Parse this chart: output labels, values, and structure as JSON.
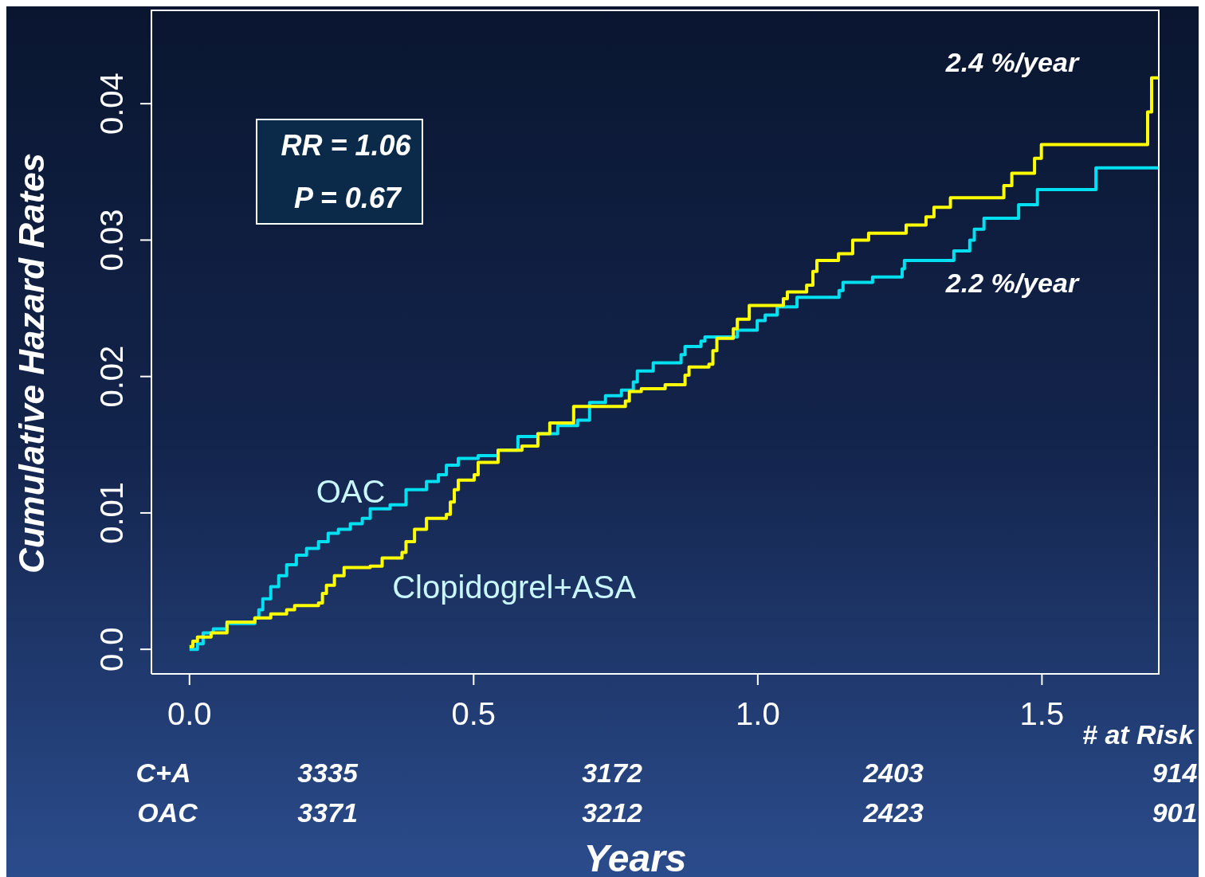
{
  "chart_data": {
    "type": "step",
    "xlabel": "Years",
    "ylabel": "Cumulative Hazard Rates",
    "xlim": [
      -0.067,
      1.707
    ],
    "ylim": [
      -0.0018,
      0.0469
    ],
    "xticks": [
      {
        "value": 0,
        "label": "0.0"
      },
      0.5,
      {
        "value": 1,
        "label": "1.0"
      },
      1.5
    ],
    "yticks": [
      {
        "value": 0,
        "label": "0.0"
      },
      0.01,
      0.02,
      0.03,
      0.04
    ],
    "series": [
      {
        "name": "OAC",
        "color": "#00e0f0",
        "x": [
          0,
          0.014,
          0.024,
          0.042,
          0.066,
          0.115,
          0.122,
          0.129,
          0.143,
          0.157,
          0.171,
          0.188,
          0.206,
          0.227,
          0.244,
          0.262,
          0.283,
          0.304,
          0.318,
          0.353,
          0.381,
          0.417,
          0.438,
          0.452,
          0.473,
          0.508,
          0.543,
          0.578,
          0.613,
          0.648,
          0.683,
          0.704,
          0.732,
          0.76,
          0.781,
          0.788,
          0.816,
          0.865,
          0.872,
          0.9,
          0.907,
          0.964,
          0.999,
          1.013,
          1.034,
          1.069,
          1.143,
          1.15,
          1.202,
          1.254,
          1.258,
          1.345,
          1.373,
          1.381,
          1.398,
          1.459,
          1.492,
          1.595,
          1.707
        ],
        "values": [
          0,
          0.0004,
          0.0012,
          0.0015,
          0.0019,
          0.0023,
          0.0029,
          0.0037,
          0.0046,
          0.0054,
          0.0062,
          0.0069,
          0.0074,
          0.0079,
          0.0085,
          0.0088,
          0.0092,
          0.0096,
          0.0103,
          0.0106,
          0.0117,
          0.0123,
          0.0128,
          0.0135,
          0.014,
          0.0142,
          0.0146,
          0.0156,
          0.0158,
          0.0164,
          0.0168,
          0.0181,
          0.0186,
          0.019,
          0.0196,
          0.0204,
          0.021,
          0.0216,
          0.0222,
          0.0226,
          0.0229,
          0.0234,
          0.0241,
          0.0245,
          0.0251,
          0.0258,
          0.0263,
          0.0269,
          0.0273,
          0.0279,
          0.0285,
          0.0292,
          0.03,
          0.0308,
          0.0316,
          0.0326,
          0.0337,
          0.0353,
          0.0353
        ]
      },
      {
        "name": "Clopidogrel+ASA",
        "color": "#ffff00",
        "x": [
          0,
          0.006,
          0.014,
          0.038,
          0.066,
          0.115,
          0.143,
          0.171,
          0.185,
          0.227,
          0.234,
          0.241,
          0.255,
          0.272,
          0.318,
          0.339,
          0.374,
          0.381,
          0.396,
          0.417,
          0.452,
          0.459,
          0.466,
          0.473,
          0.501,
          0.508,
          0.543,
          0.585,
          0.613,
          0.634,
          0.676,
          0.767,
          0.774,
          0.795,
          0.837,
          0.872,
          0.879,
          0.914,
          0.921,
          0.928,
          0.957,
          0.964,
          0.985,
          1.045,
          1.052,
          1.086,
          1.097,
          1.104,
          1.142,
          1.167,
          1.195,
          1.261,
          1.296,
          1.31,
          1.339,
          1.433,
          1.447,
          1.487,
          1.499,
          1.686,
          1.693,
          1.707
        ],
        "values": [
          0.0002,
          0.0006,
          0.0009,
          0.0012,
          0.002,
          0.0023,
          0.0026,
          0.0029,
          0.0032,
          0.0034,
          0.0041,
          0.0047,
          0.0054,
          0.006,
          0.0061,
          0.0067,
          0.0071,
          0.0079,
          0.0088,
          0.0096,
          0.0099,
          0.0108,
          0.0117,
          0.0124,
          0.0128,
          0.0137,
          0.0146,
          0.0149,
          0.0158,
          0.0166,
          0.0178,
          0.0182,
          0.0189,
          0.0191,
          0.0194,
          0.0201,
          0.0207,
          0.0209,
          0.0219,
          0.0228,
          0.0235,
          0.0242,
          0.0252,
          0.0257,
          0.0262,
          0.0267,
          0.0277,
          0.0285,
          0.029,
          0.03,
          0.0305,
          0.0311,
          0.0317,
          0.0324,
          0.0331,
          0.034,
          0.0349,
          0.036,
          0.037,
          0.0394,
          0.0419,
          0.0419
        ]
      }
    ],
    "annotations": [
      "RR = 1.06",
      "P = 0.67",
      "2.4 %/year",
      "2.2 %/year",
      "# at Risk",
      "C+A",
      "3335",
      "3172",
      "2403",
      "914",
      "OAC",
      "3371",
      "3212",
      "2423",
      "901"
    ]
  }
}
